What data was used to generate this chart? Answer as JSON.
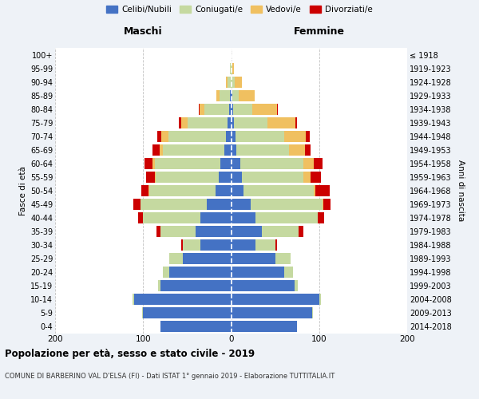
{
  "age_groups": [
    "0-4",
    "5-9",
    "10-14",
    "15-19",
    "20-24",
    "25-29",
    "30-34",
    "35-39",
    "40-44",
    "45-49",
    "50-54",
    "55-59",
    "60-64",
    "65-69",
    "70-74",
    "75-79",
    "80-84",
    "85-89",
    "90-94",
    "95-99",
    "100+"
  ],
  "birth_years": [
    "2014-2018",
    "2009-2013",
    "2004-2008",
    "1999-2003",
    "1994-1998",
    "1989-1993",
    "1984-1988",
    "1979-1983",
    "1974-1978",
    "1969-1973",
    "1964-1968",
    "1959-1963",
    "1954-1958",
    "1949-1953",
    "1944-1948",
    "1939-1943",
    "1934-1938",
    "1929-1933",
    "1924-1928",
    "1919-1923",
    "≤ 1918"
  ],
  "maschi": {
    "celibi": [
      80,
      100,
      110,
      80,
      70,
      55,
      35,
      40,
      35,
      28,
      18,
      14,
      12,
      8,
      6,
      4,
      2,
      1,
      0,
      0,
      0
    ],
    "coniugati": [
      0,
      1,
      2,
      3,
      8,
      15,
      20,
      40,
      65,
      75,
      75,
      72,
      75,
      70,
      65,
      45,
      28,
      12,
      4,
      1,
      0
    ],
    "vedovi": [
      0,
      0,
      0,
      0,
      0,
      0,
      0,
      0,
      0,
      0,
      1,
      1,
      2,
      3,
      8,
      8,
      6,
      4,
      2,
      0,
      0
    ],
    "divorziati": [
      0,
      0,
      0,
      0,
      0,
      0,
      2,
      5,
      6,
      8,
      8,
      10,
      9,
      8,
      5,
      2,
      1,
      0,
      0,
      0,
      0
    ]
  },
  "femmine": {
    "nubili": [
      75,
      92,
      100,
      72,
      60,
      50,
      28,
      35,
      28,
      22,
      14,
      12,
      10,
      6,
      5,
      3,
      2,
      1,
      0,
      0,
      0
    ],
    "coniugate": [
      0,
      1,
      2,
      4,
      10,
      18,
      22,
      42,
      70,
      82,
      80,
      70,
      72,
      60,
      55,
      38,
      22,
      8,
      4,
      1,
      0
    ],
    "vedove": [
      0,
      0,
      0,
      0,
      0,
      0,
      0,
      0,
      0,
      1,
      2,
      8,
      12,
      18,
      25,
      32,
      28,
      18,
      8,
      2,
      0
    ],
    "divorziate": [
      0,
      0,
      0,
      0,
      0,
      0,
      2,
      5,
      8,
      8,
      16,
      12,
      10,
      6,
      4,
      2,
      1,
      0,
      0,
      0,
      0
    ]
  },
  "color_celibi": "#4472c4",
  "color_coniugati": "#c5d9a0",
  "color_vedovi": "#f0c060",
  "color_divorziati": "#cc0000",
  "bg_color": "#eef2f7",
  "plot_bg": "#ffffff",
  "grid_color": "#bbbbbb",
  "title": "Popolazione per età, sesso e stato civile - 2019",
  "subtitle": "COMUNE DI BARBERINO VAL D'ELSA (FI) - Dati ISTAT 1° gennaio 2019 - Elaborazione TUTTITALIA.IT",
  "xlabel_left": "Maschi",
  "xlabel_right": "Femmine",
  "ylabel_left": "Fasce di età",
  "ylabel_right": "Anni di nascita",
  "xlim": 200
}
